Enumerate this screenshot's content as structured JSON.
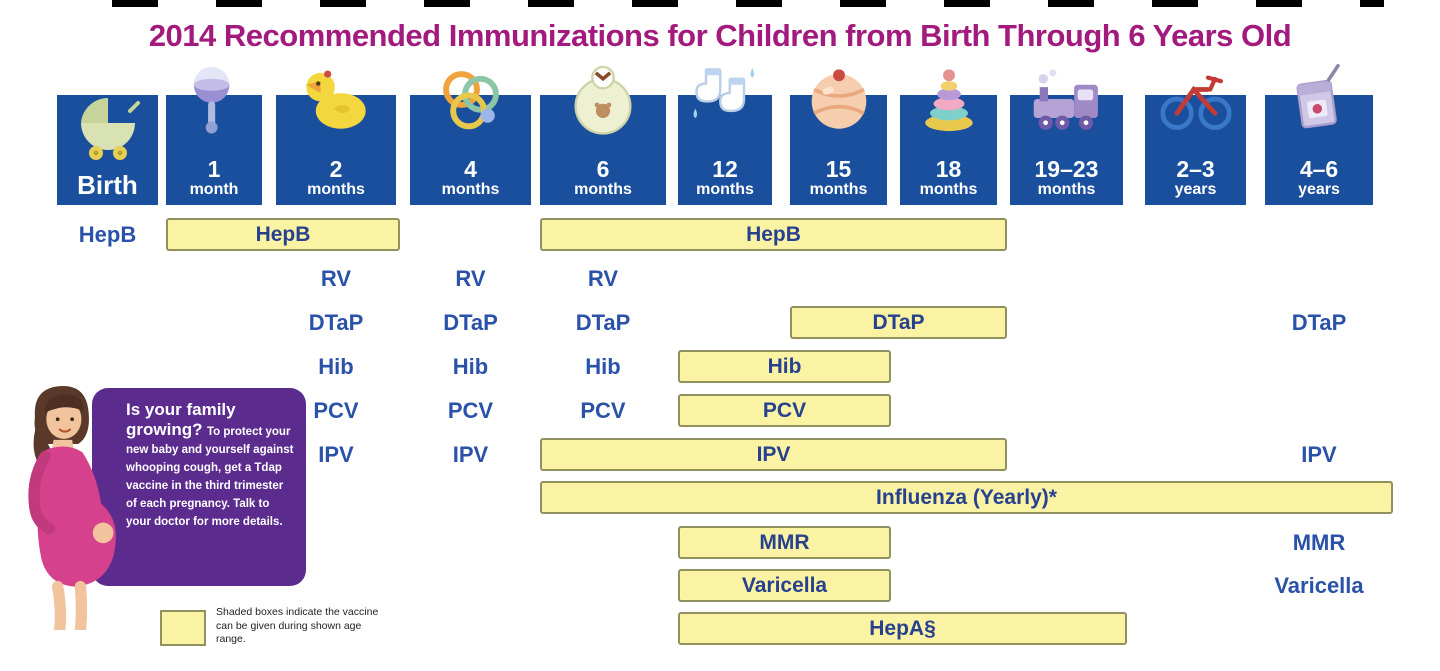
{
  "title": "2014 Recommended Immunizations for Children from Birth Through 6 Years Old",
  "colors": {
    "title": "#a21a7d",
    "header_box": "#1a4f9e",
    "bar_fill": "#faf3a4",
    "bar_border": "#90915f",
    "vaccine_text": "#2a52a8",
    "note_box": "#5b2c8e"
  },
  "chart_data": {
    "type": "table",
    "title": "2014 Recommended Immunizations for Children from Birth Through 6 Years Old",
    "columns": [
      {
        "id": "birth",
        "label": "Birth",
        "sublabel": "",
        "icon": "pram-icon"
      },
      {
        "id": "1m",
        "label": "1",
        "sublabel": "month",
        "icon": "rattle-icon"
      },
      {
        "id": "2m",
        "label": "2",
        "sublabel": "months",
        "icon": "duck-icon"
      },
      {
        "id": "4m",
        "label": "4",
        "sublabel": "months",
        "icon": "pacifier-icon"
      },
      {
        "id": "6m",
        "label": "6",
        "sublabel": "months",
        "icon": "bib-icon"
      },
      {
        "id": "12m",
        "label": "12",
        "sublabel": "months",
        "icon": "socks-icon"
      },
      {
        "id": "15m",
        "label": "15",
        "sublabel": "months",
        "icon": "ball-icon"
      },
      {
        "id": "18m",
        "label": "18",
        "sublabel": "months",
        "icon": "stacking-rings-icon"
      },
      {
        "id": "19-23m",
        "label": "19–23",
        "sublabel": "months",
        "icon": "train-icon"
      },
      {
        "id": "2-3y",
        "label": "2–3",
        "sublabel": "years",
        "icon": "tricycle-icon"
      },
      {
        "id": "4-6y",
        "label": "4–6",
        "sublabel": "years",
        "icon": "juice-box-icon"
      }
    ],
    "rows": [
      {
        "vaccine": "HepB",
        "texts": [
          {
            "col": "birth",
            "label": "HepB"
          }
        ],
        "bars": [
          {
            "from": "1m",
            "to": "2m",
            "label": "HepB"
          },
          {
            "from": "6m",
            "to": "18m",
            "label": "HepB"
          }
        ]
      },
      {
        "vaccine": "RV",
        "texts": [
          {
            "col": "2m",
            "label": "RV"
          },
          {
            "col": "4m",
            "label": "RV"
          },
          {
            "col": "6m",
            "label": "RV"
          }
        ],
        "bars": []
      },
      {
        "vaccine": "DTaP",
        "texts": [
          {
            "col": "2m",
            "label": "DTaP"
          },
          {
            "col": "4m",
            "label": "DTaP"
          },
          {
            "col": "6m",
            "label": "DTaP"
          },
          {
            "col": "4-6y",
            "label": "DTaP"
          }
        ],
        "bars": [
          {
            "from": "15m",
            "to": "18m",
            "label": "DTaP"
          }
        ]
      },
      {
        "vaccine": "Hib",
        "texts": [
          {
            "col": "2m",
            "label": "Hib"
          },
          {
            "col": "4m",
            "label": "Hib"
          },
          {
            "col": "6m",
            "label": "Hib"
          }
        ],
        "bars": [
          {
            "from": "12m",
            "to": "15m",
            "label": "Hib"
          }
        ]
      },
      {
        "vaccine": "PCV",
        "texts": [
          {
            "col": "2m",
            "label": "PCV"
          },
          {
            "col": "4m",
            "label": "PCV"
          },
          {
            "col": "6m",
            "label": "PCV"
          }
        ],
        "bars": [
          {
            "from": "12m",
            "to": "15m",
            "label": "PCV"
          }
        ]
      },
      {
        "vaccine": "IPV",
        "texts": [
          {
            "col": "2m",
            "label": "IPV"
          },
          {
            "col": "4m",
            "label": "IPV"
          },
          {
            "col": "4-6y",
            "label": "IPV"
          }
        ],
        "bars": [
          {
            "from": "6m",
            "to": "18m",
            "label": "IPV"
          }
        ]
      },
      {
        "vaccine": "Influenza",
        "texts": [],
        "bars": [
          {
            "from": "6m",
            "to": "4-6y",
            "label": "Influenza (Yearly)*"
          }
        ]
      },
      {
        "vaccine": "MMR",
        "texts": [
          {
            "col": "4-6y",
            "label": "MMR"
          }
        ],
        "bars": [
          {
            "from": "12m",
            "to": "15m",
            "label": "MMR"
          }
        ]
      },
      {
        "vaccine": "Varicella",
        "texts": [
          {
            "col": "4-6y",
            "label": "Varicella"
          }
        ],
        "bars": [
          {
            "from": "12m",
            "to": "15m",
            "label": "Varicella"
          }
        ]
      },
      {
        "vaccine": "HepA",
        "texts": [],
        "bars": [
          {
            "from": "12m",
            "to": "19-23m",
            "label": "HepA§"
          }
        ]
      }
    ]
  },
  "sidebar_note": {
    "heading": "Is your family growing?",
    "body": "To protect your new baby and yourself against whooping cough, get a Tdap vaccine in the third trimester of each pregnancy. Talk to your doctor for more details."
  },
  "legend": {
    "text": "Shaded boxes indicate the vaccine can be given during shown age range."
  }
}
